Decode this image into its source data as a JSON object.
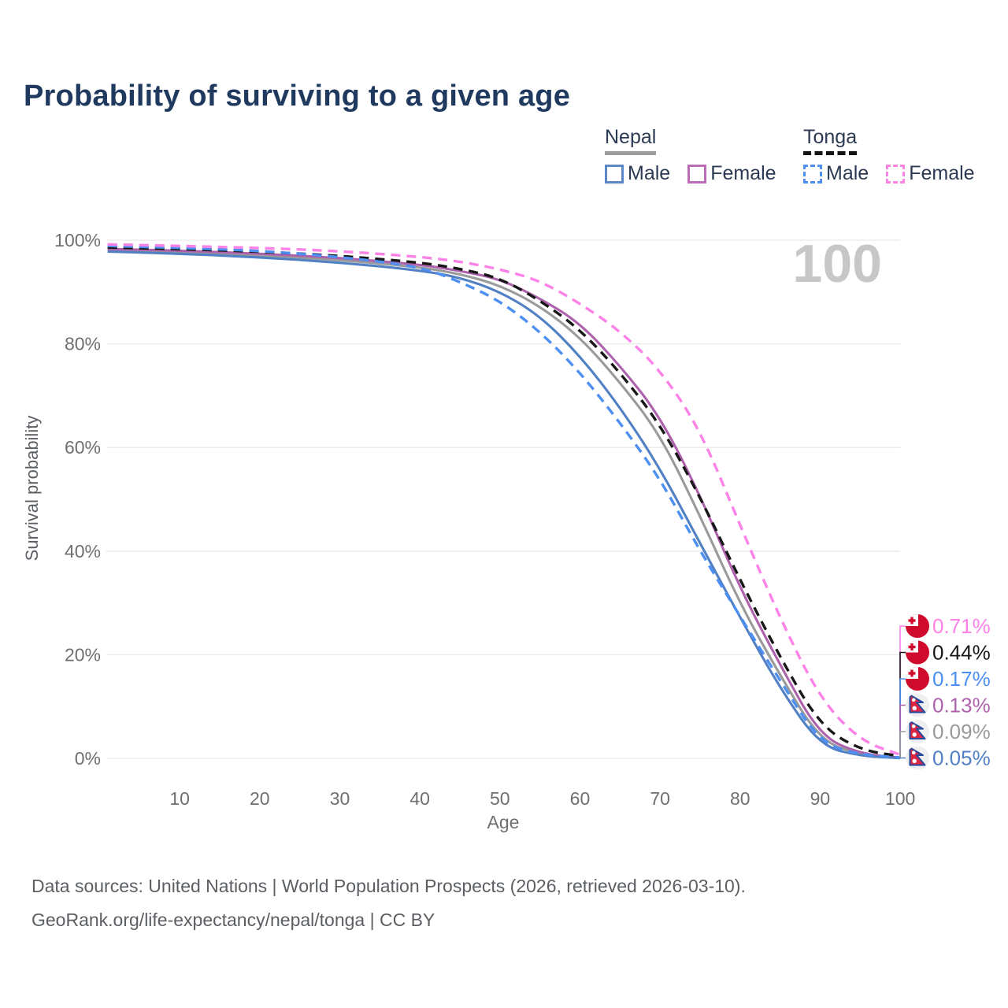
{
  "title": "Probability of surviving to a given age",
  "watermark": "100",
  "legend": {
    "groups": [
      {
        "name": "Nepal",
        "line_style": "solid",
        "items": [
          {
            "label": "Male",
            "color": "#5b87c8",
            "dashed": false
          },
          {
            "label": "Female",
            "color": "#bd6cb8",
            "dashed": false
          }
        ]
      },
      {
        "name": "Tonga",
        "line_style": "dashed",
        "items": [
          {
            "label": "Male",
            "color": "#4d90f2",
            "dashed": true
          },
          {
            "label": "Female",
            "color": "#fc85e8",
            "dashed": true
          }
        ]
      }
    ]
  },
  "chart_data": {
    "type": "line",
    "title": "Probability of surviving to a given age",
    "xlabel": "Age",
    "ylabel": "Survival probability",
    "xlim": [
      1,
      100
    ],
    "ylim": [
      0,
      100
    ],
    "grid": "horizontal",
    "x_ticks": [
      10,
      20,
      30,
      40,
      50,
      60,
      70,
      80,
      90,
      100
    ],
    "y_ticks": [
      0,
      20,
      40,
      60,
      80,
      100
    ],
    "y_tick_labels": [
      "0%",
      "20%",
      "40%",
      "60%",
      "80%",
      "100%"
    ],
    "x": [
      1,
      10,
      20,
      30,
      40,
      45,
      50,
      55,
      60,
      65,
      70,
      75,
      80,
      85,
      90,
      95,
      100
    ],
    "series": [
      {
        "id": "nepal-all",
        "country": "Nepal",
        "sex": "All",
        "color": "#9a9a9a",
        "dashed": false,
        "end_label": "0.09%",
        "flag": "nepal",
        "end_value": 0.09,
        "values": [
          98.1,
          97.7,
          97.1,
          96.2,
          94.8,
          93.5,
          91.3,
          87.3,
          81.3,
          72.6,
          62.5,
          46.8,
          29.8,
          16.0,
          3.4,
          0.7,
          0.09
        ]
      },
      {
        "id": "nepal-female",
        "country": "Nepal",
        "sex": "Female",
        "color": "#ae62ad",
        "dashed": false,
        "end_label": "0.13%",
        "flag": "nepal",
        "end_value": 0.13,
        "values": [
          98.3,
          98.0,
          97.4,
          96.6,
          95.3,
          94.1,
          92.5,
          88.8,
          84.0,
          75.8,
          66.0,
          50.8,
          32.8,
          18.0,
          4.3,
          0.9,
          0.13
        ]
      },
      {
        "id": "nepal-male",
        "country": "Nepal",
        "sex": "Male",
        "color": "#5180c4",
        "dashed": false,
        "end_label": "0.05%",
        "flag": "nepal",
        "end_value": 0.05,
        "values": [
          97.8,
          97.4,
          96.7,
          95.7,
          94.2,
          92.8,
          90.1,
          85.4,
          77.7,
          67.8,
          56.0,
          41.5,
          27.2,
          13.5,
          2.4,
          0.45,
          0.05
        ]
      },
      {
        "id": "tonga-all",
        "country": "Tonga",
        "sex": "All",
        "color": "#171717",
        "dashed": true,
        "end_label": "0.44%",
        "flag": "tonga",
        "end_value": 0.44,
        "values": [
          98.6,
          98.3,
          97.8,
          97.0,
          95.7,
          94.5,
          92.7,
          88.4,
          82.8,
          74.5,
          64.5,
          50.5,
          34.4,
          19.5,
          6.3,
          1.6,
          0.44
        ]
      },
      {
        "id": "tonga-male",
        "country": "Tonga",
        "sex": "Male",
        "color": "#4d90f2",
        "dashed": true,
        "end_label": "0.17%",
        "flag": "tonga",
        "end_value": 0.17,
        "values": [
          98.9,
          98.55,
          97.95,
          96.8,
          94.9,
          92.0,
          88.3,
          82.4,
          74.5,
          64.8,
          54.0,
          40.0,
          27.4,
          15.0,
          3.0,
          0.7,
          0.17
        ]
      },
      {
        "id": "tonga-female",
        "country": "Tonga",
        "sex": "Female",
        "color": "#fc82e8",
        "dashed": true,
        "end_label": "0.71%",
        "flag": "tonga",
        "end_value": 0.71,
        "values": [
          99.2,
          98.9,
          98.5,
          97.9,
          96.8,
          95.9,
          94.4,
          92.2,
          87.8,
          82.5,
          75.0,
          63.5,
          45.0,
          27.0,
          11.5,
          3.4,
          0.71
        ]
      }
    ]
  },
  "footer": {
    "line1": "Data sources: United Nations | World Population Prospects (2026, retrieved 2026-03-10).",
    "line2": "GeoRank.org/life-expectancy/nepal/tonga | CC BY"
  },
  "colors": {
    "title": "#1f3a5e",
    "axis_text": "#6f6f6f",
    "gridline": "#e9e9e9",
    "watermark": "#c7c7c7",
    "tonga_flag_red": "#cf0a2c",
    "nepal_flag_crimson": "#dc2646",
    "nepal_flag_blue": "#26499d"
  }
}
